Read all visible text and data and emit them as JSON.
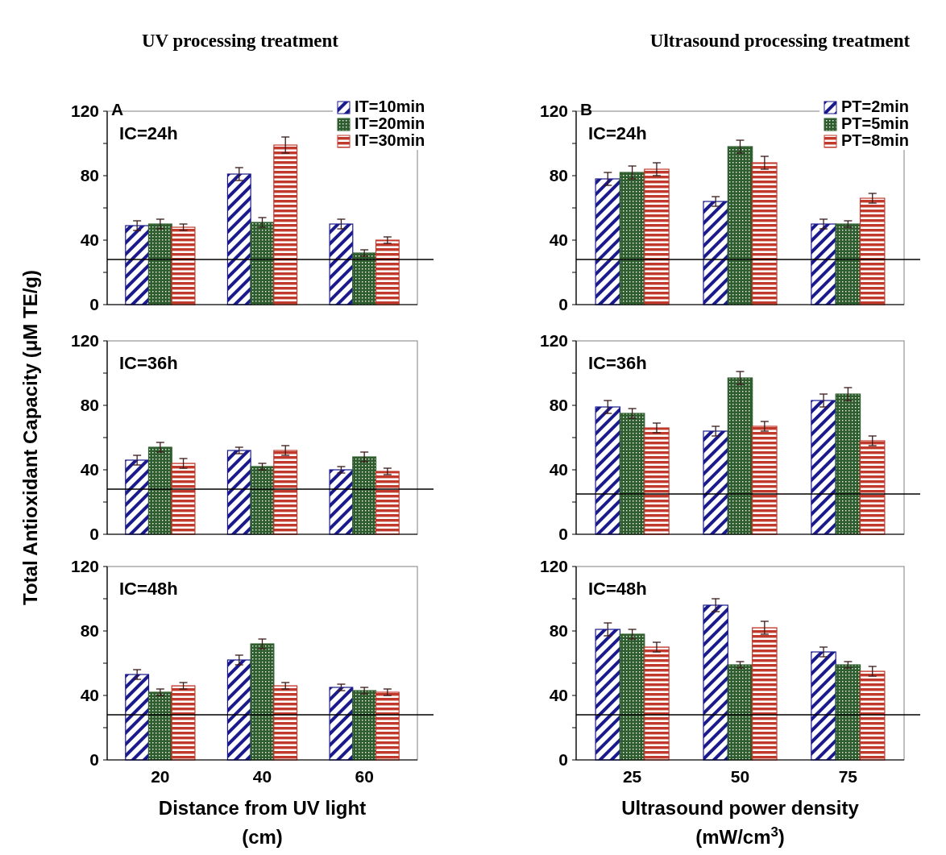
{
  "chart_data": [
    {
      "type": "bar",
      "title": "UV processing treatment",
      "categories": [
        null,
        null,
        null
      ],
      "tick_labels": "y",
      "legend": "top right",
      "annotations": [
        "IC=24h",
        "A"
      ],
      "ylim": [
        0,
        120
      ],
      "yticks": [
        0,
        {
          "value": 20,
          "label": null
        },
        40,
        {
          "value": 60,
          "label": null
        },
        80,
        {
          "value": 100,
          "label": null
        },
        120
      ],
      "ref_lines": [
        {
          "axis": "y",
          "value": 28,
          "color": "#000000"
        }
      ],
      "series": [
        {
          "name": "IT=10min",
          "color": "#1a1a8c",
          "values": [
            49,
            81,
            50
          ],
          "errors": [
            3,
            4,
            3
          ]
        },
        {
          "name": "IT=20min",
          "color": "#2e5e2e",
          "values": [
            50,
            51,
            32
          ],
          "errors": [
            3,
            3,
            2
          ]
        },
        {
          "name": "IT=30min",
          "color": "#c0392b",
          "values": [
            48,
            99,
            40
          ],
          "errors": [
            2,
            5,
            2
          ]
        }
      ]
    },
    {
      "type": "bar",
      "title": "Ultrasound processing treatment",
      "categories": [
        null,
        null,
        null
      ],
      "tick_labels": "y",
      "legend": "top right",
      "annotations": [
        "IC=24h",
        "B"
      ],
      "ylim": [
        0,
        120
      ],
      "yticks": [
        0,
        {
          "value": 20,
          "label": null
        },
        40,
        {
          "value": 60,
          "label": null
        },
        80,
        {
          "value": 100,
          "label": null
        },
        120
      ],
      "ref_lines": [
        {
          "axis": "y",
          "value": 28,
          "color": "#000000"
        }
      ],
      "series": [
        {
          "name": "PT=2min",
          "color": "#1a1a8c",
          "values": [
            78,
            64,
            50
          ],
          "errors": [
            4,
            3,
            3
          ]
        },
        {
          "name": "PT=5min",
          "color": "#2e5e2e",
          "values": [
            82,
            98,
            50
          ],
          "errors": [
            4,
            4,
            2
          ]
        },
        {
          "name": "PT=8min",
          "color": "#c0392b",
          "values": [
            84,
            88,
            66
          ],
          "errors": [
            4,
            4,
            3
          ]
        }
      ]
    },
    {
      "type": "bar",
      "ylabel": "Total Antioxidant Capacity  (μM TE/g)",
      "categories": [
        null,
        null,
        null
      ],
      "tick_labels": "y",
      "annotations": [
        "IC=36h"
      ],
      "ylim": [
        0,
        120
      ],
      "yticks": [
        0,
        {
          "value": 20,
          "label": null
        },
        40,
        {
          "value": 60,
          "label": null
        },
        80,
        {
          "value": 100,
          "label": null
        },
        120
      ],
      "ref_lines": [
        {
          "axis": "y",
          "value": 28,
          "color": "#000000"
        }
      ],
      "series": [
        {
          "color": "#1a1a8c",
          "values": [
            46,
            52,
            40
          ],
          "errors": [
            3,
            2,
            2
          ]
        },
        {
          "color": "#2e5e2e",
          "values": [
            54,
            42,
            48
          ],
          "errors": [
            3,
            2,
            3
          ]
        },
        {
          "color": "#c0392b",
          "values": [
            44,
            52,
            39
          ],
          "errors": [
            3,
            3,
            2
          ]
        }
      ]
    },
    {
      "type": "bar",
      "categories": [
        null,
        null,
        null
      ],
      "tick_labels": "y",
      "annotations": [
        "IC=36h"
      ],
      "ylim": [
        0,
        120
      ],
      "yticks": [
        0,
        {
          "value": 20,
          "label": null
        },
        40,
        {
          "value": 60,
          "label": null
        },
        80,
        {
          "value": 100,
          "label": null
        },
        120
      ],
      "ref_lines": [
        {
          "axis": "y",
          "value": 25,
          "color": "#000000"
        }
      ],
      "series": [
        {
          "color": "#1a1a8c",
          "values": [
            79,
            64,
            83
          ],
          "errors": [
            4,
            3,
            4
          ]
        },
        {
          "color": "#2e5e2e",
          "values": [
            75,
            97,
            87
          ],
          "errors": [
            3,
            4,
            4
          ]
        },
        {
          "color": "#c0392b",
          "values": [
            66,
            67,
            58
          ],
          "errors": [
            3,
            3,
            3
          ]
        }
      ]
    },
    {
      "type": "bar",
      "xlabel": "Distance from UV light\n(cm)",
      "categories": [
        "20",
        "40",
        "60"
      ],
      "annotations": [
        "IC=48h"
      ],
      "ylim": [
        0,
        120
      ],
      "yticks": [
        0,
        {
          "value": 20,
          "label": null
        },
        40,
        {
          "value": 60,
          "label": null
        },
        80,
        {
          "value": 100,
          "label": null
        },
        120
      ],
      "ref_lines": [
        {
          "axis": "y",
          "value": 28,
          "color": "#000000"
        }
      ],
      "series": [
        {
          "color": "#1a1a8c",
          "values": [
            53,
            62,
            45
          ],
          "errors": [
            3,
            3,
            2
          ]
        },
        {
          "color": "#2e5e2e",
          "values": [
            42,
            72,
            43
          ],
          "errors": [
            2,
            3,
            2
          ]
        },
        {
          "color": "#c0392b",
          "values": [
            46,
            46,
            42
          ],
          "errors": [
            2,
            2,
            2
          ]
        }
      ]
    },
    {
      "type": "bar",
      "xlabel": "Ultrasound power density\n(mW/cm$^{3}$)",
      "categories": [
        "25",
        "50",
        "75"
      ],
      "annotations": [
        "IC=48h"
      ],
      "ylim": [
        0,
        120
      ],
      "yticks": [
        0,
        {
          "value": 20,
          "label": null
        },
        40,
        {
          "value": 60,
          "label": null
        },
        80,
        {
          "value": 100,
          "label": null
        },
        120
      ],
      "ref_lines": [
        {
          "axis": "y",
          "value": 28,
          "color": "#000000"
        }
      ],
      "series": [
        {
          "color": "#1a1a8c",
          "values": [
            81,
            96,
            67
          ],
          "errors": [
            4,
            4,
            3
          ]
        },
        {
          "color": "#2e5e2e",
          "values": [
            78,
            59,
            59
          ],
          "errors": [
            3,
            2,
            2
          ]
        },
        {
          "color": "#c0392b",
          "values": [
            70,
            82,
            55
          ],
          "errors": [
            3,
            4,
            3
          ]
        }
      ]
    }
  ]
}
